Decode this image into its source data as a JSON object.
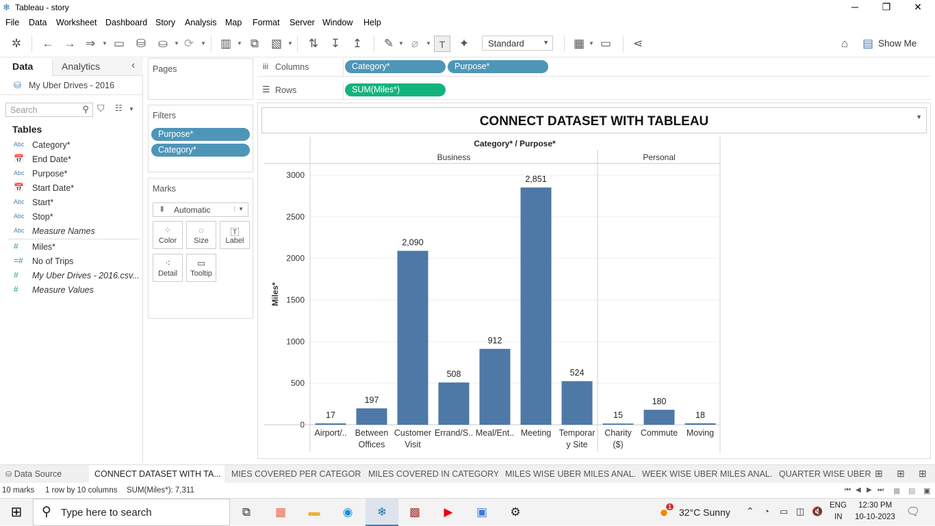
{
  "window": {
    "title": "Tableau - story"
  },
  "menu": [
    "File",
    "Data",
    "Worksheet",
    "Dashboard",
    "Story",
    "Analysis",
    "Map",
    "Format",
    "Server",
    "Window",
    "Help"
  ],
  "toolbar": {
    "fit_select": "Standard",
    "show_me": "Show Me"
  },
  "left": {
    "tab_data": "Data",
    "tab_analytics": "Analytics",
    "datasource": "My Uber Drives - 2016",
    "search_placeholder": "Search",
    "tables_header": "Tables",
    "fields": [
      {
        "type": "Abc",
        "name": "Category*"
      },
      {
        "type": "cal",
        "name": "End Date*"
      },
      {
        "type": "Abc",
        "name": "Purpose*"
      },
      {
        "type": "cal",
        "name": "Start Date*"
      },
      {
        "type": "Abc",
        "name": "Start*"
      },
      {
        "type": "Abc",
        "name": "Stop*"
      },
      {
        "type": "Abc",
        "name": "Measure Names"
      },
      {
        "type": "#",
        "name": "Miles*"
      },
      {
        "type": "=#",
        "name": "No of Trips"
      },
      {
        "type": "#",
        "name": "My Uber Drives - 2016.csv..."
      },
      {
        "type": "#",
        "name": "Measure Values"
      }
    ]
  },
  "shelves": {
    "pages_label": "Pages",
    "filters_label": "Filters",
    "filters": [
      "Purpose*",
      "Category*"
    ],
    "marks_label": "Marks",
    "marks_type": "Automatic",
    "mark_buttons": [
      "Color",
      "Size",
      "Label",
      "Detail",
      "Tooltip"
    ],
    "columns_label": "Columns",
    "columns": [
      "Category*",
      "Purpose*"
    ],
    "rows_label": "Rows",
    "rows": [
      "SUM(Miles*)"
    ]
  },
  "chart_data": {
    "type": "bar",
    "title": "CONNECT DATASET WITH TABLEAU",
    "header": "Category* / Purpose*",
    "ylabel": "Miles*",
    "ylim": [
      0,
      3100
    ],
    "yticks": [
      0,
      500,
      1000,
      1500,
      2000,
      2500,
      3000
    ],
    "groups": [
      {
        "name": "Business",
        "categories": [
          "Airport/..",
          "Between Offices",
          "Customer Visit",
          "Errand/S..",
          "Meal/Ent..",
          "Meeting",
          "Temporary Site"
        ],
        "values": [
          17,
          197,
          2090,
          508,
          912,
          2851,
          524
        ]
      },
      {
        "name": "Personal",
        "categories": [
          "Charity ($)",
          "Commute",
          "Moving"
        ],
        "values": [
          15,
          180,
          18
        ]
      }
    ],
    "value_labels": [
      "17",
      "197",
      "2,090",
      "508",
      "912",
      "2,851",
      "524",
      "15",
      "180",
      "18"
    ],
    "tick_labels": [
      [
        "Airport/.."
      ],
      [
        "Between",
        "Offices"
      ],
      [
        "Customer",
        "Visit"
      ],
      [
        "Errand/S.."
      ],
      [
        "Meal/Ent.."
      ],
      [
        "Meeting"
      ],
      [
        "Temporar",
        "y Site"
      ],
      [
        "Charity",
        "($)"
      ],
      [
        "Commute"
      ],
      [
        "Moving"
      ]
    ],
    "bar_color": "#4e79a7"
  },
  "sheets": {
    "data_source": "Data Source",
    "tabs": [
      "CONNECT DATASET WITH TA...",
      "MIES COVERED PER CATEGOR...",
      "MILES COVERED IN CATEGORY...",
      "MILES WISE UBER MILES ANAL...",
      "WEEK WISE UBER MILES ANAL...",
      "QUARTER WISE UBER M"
    ]
  },
  "status": {
    "marks": "10 marks",
    "shape": "1 row by 10 columns",
    "sum": "SUM(Miles*): 7,311"
  },
  "taskbar": {
    "search": "Type here to search",
    "weather": "32°C  Sunny",
    "lang1": "ENG",
    "lang2": "IN",
    "time": "12:30 PM",
    "date": "10-10-2023",
    "weather_badge": "1"
  }
}
